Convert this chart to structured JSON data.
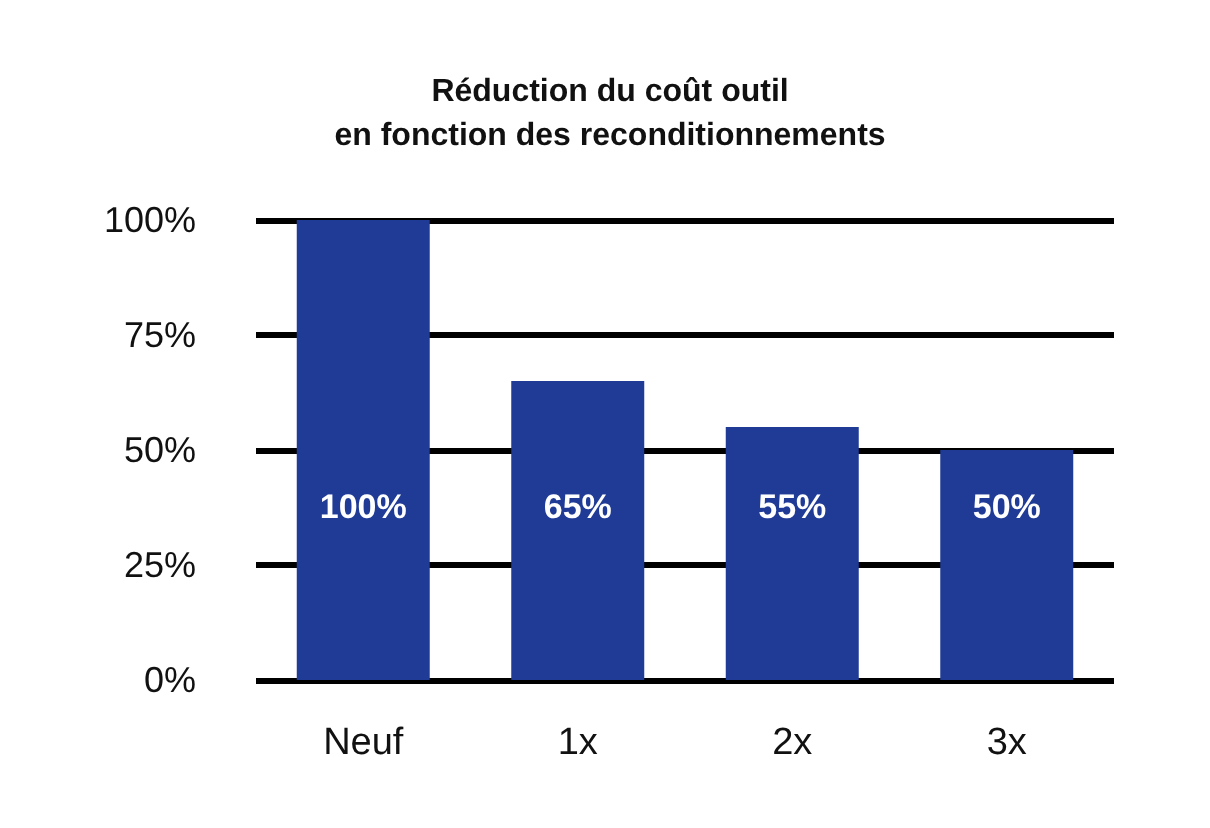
{
  "chart_data": {
    "type": "bar",
    "title": "Réduction du coût outil\nen fonction des reconditionnements",
    "categories": [
      "Neuf",
      "1x",
      "2x",
      "3x"
    ],
    "values": [
      100,
      65,
      55,
      50
    ],
    "value_labels": [
      "100%",
      "65%",
      "55%",
      "50%"
    ],
    "color": "#1f3b96",
    "ylim": [
      0,
      100
    ],
    "yticks": [
      {
        "value": 0,
        "label": "0%"
      },
      {
        "value": 25,
        "label": "25%"
      },
      {
        "value": 50,
        "label": "50%"
      },
      {
        "value": 75,
        "label": "75%"
      },
      {
        "value": 100,
        "label": "100%"
      }
    ],
    "grid": true
  }
}
